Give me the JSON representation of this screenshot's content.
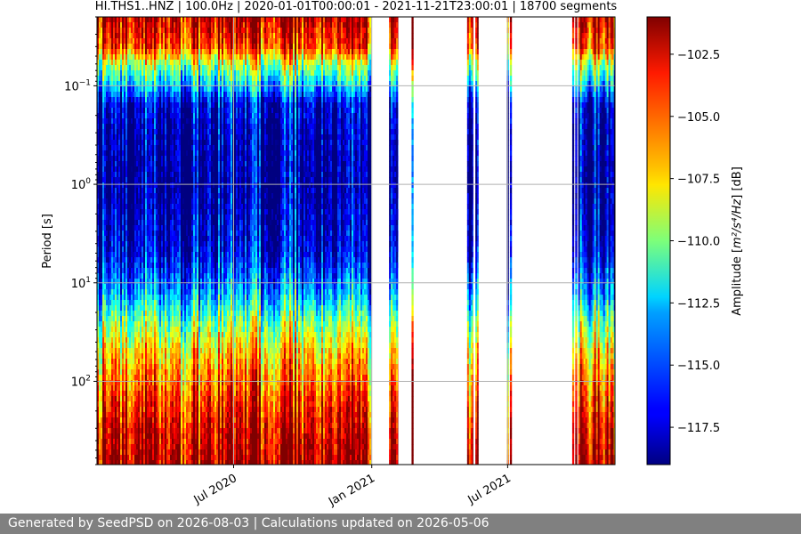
{
  "footer": {
    "text": "Generated by SeedPSD on 2026-08-03 | Calculations updated on 2026-05-06"
  },
  "chart_data": {
    "type": "heatmap",
    "title": "HI.THS1..HNZ | 100.0Hz | 2020-01-01T00:00:01 - 2021-11-21T23:00:01 | 18700 segments",
    "xlabel": "",
    "ylabel": "Period [s]",
    "yscale": "log",
    "yaxis_inverted": true,
    "ylim": [
      0.02,
      700
    ],
    "xlim": [
      "2020-01-01",
      "2021-11-21"
    ],
    "x_ticks": [
      {
        "date": "2020-07-01",
        "label": "Jul 2020"
      },
      {
        "date": "2021-01-01",
        "label": "Jan 2021"
      },
      {
        "date": "2021-07-01",
        "label": "Jul 2021"
      }
    ],
    "y_ticks": [
      {
        "value": 0.1,
        "base": "10",
        "exp": "−1"
      },
      {
        "value": 1,
        "base": "10",
        "exp": "0"
      },
      {
        "value": 10,
        "base": "10",
        "exp": "1"
      },
      {
        "value": 100,
        "base": "10",
        "exp": "2"
      }
    ],
    "grid": true,
    "colorbar": {
      "label": "Amplitude [m²/s⁴/Hz] [dB]",
      "label_main": "Amplitude [",
      "label_unit": "m²/s⁴/Hz",
      "label_tail": "] [dB]",
      "colormap": "jet",
      "range": [
        -119,
        -101
      ],
      "ticks": [
        {
          "value": -102.5,
          "label": "−102.5"
        },
        {
          "value": -105.0,
          "label": "−105.0"
        },
        {
          "value": -107.5,
          "label": "−107.5"
        },
        {
          "value": -110.0,
          "label": "−110.0"
        },
        {
          "value": -112.5,
          "label": "−112.5"
        },
        {
          "value": -115.0,
          "label": "−115.0"
        },
        {
          "value": -117.5,
          "label": "−117.5"
        }
      ]
    },
    "data_intervals": [
      {
        "start": "2020-01-01",
        "end": "2020-12-31"
      },
      {
        "start": "2021-01-24",
        "end": "2021-02-05"
      },
      {
        "start": "2021-02-23",
        "end": "2021-02-24"
      },
      {
        "start": "2021-05-08",
        "end": "2021-05-16"
      },
      {
        "start": "2021-05-19",
        "end": "2021-05-23"
      },
      {
        "start": "2021-06-30",
        "end": "2021-07-01"
      },
      {
        "start": "2021-07-04",
        "end": "2021-07-05"
      },
      {
        "start": "2021-09-25",
        "end": "2021-09-26"
      },
      {
        "start": "2021-09-29",
        "end": "2021-09-30"
      },
      {
        "start": "2021-10-03",
        "end": "2021-11-21"
      }
    ],
    "typical_spectrum_db": [
      {
        "period": 0.02,
        "db": -102
      },
      {
        "period": 0.04,
        "db": -104
      },
      {
        "period": 0.06,
        "db": -109
      },
      {
        "period": 0.1,
        "db": -113
      },
      {
        "period": 0.15,
        "db": -117
      },
      {
        "period": 0.3,
        "db": -118
      },
      {
        "period": 1,
        "db": -118.5
      },
      {
        "period": 5,
        "db": -117
      },
      {
        "period": 12,
        "db": -114
      },
      {
        "period": 25,
        "db": -110
      },
      {
        "period": 50,
        "db": -107
      },
      {
        "period": 100,
        "db": -105
      },
      {
        "period": 300,
        "db": -102.5
      },
      {
        "period": 700,
        "db": -101.5
      }
    ]
  }
}
